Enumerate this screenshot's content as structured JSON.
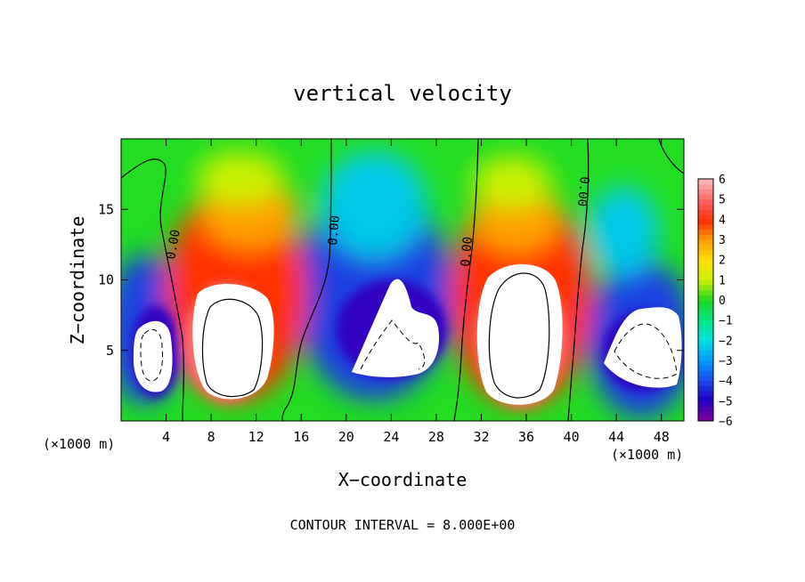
{
  "chart_data": {
    "type": "heatmap",
    "title": "vertical velocity",
    "xlabel": "X−coordinate",
    "ylabel": "Z−coordinate",
    "x_unit_left": "(×1000 m)",
    "x_unit_right": "(×1000 m)",
    "footer": "CONTOUR INTERVAL = 8.000E+00",
    "xlim": [
      0,
      50
    ],
    "ylim": [
      0,
      20
    ],
    "xticks": [
      4,
      8,
      12,
      16,
      20,
      24,
      28,
      32,
      36,
      40,
      44,
      48
    ],
    "yticks": [
      5,
      10,
      15
    ],
    "colorbar": {
      "range": [
        -6,
        6
      ],
      "ticks": [
        "6",
        "5",
        "4",
        "3",
        "2",
        "1",
        "0",
        "−1",
        "−2",
        "−3",
        "−4",
        "−5",
        "−6"
      ],
      "ramp": [
        "#7a00a0",
        "#2000c8",
        "#1850f0",
        "#00a0ff",
        "#00e0e0",
        "#00e880",
        "#20d820",
        "#c8f000",
        "#ffe000",
        "#ffa000",
        "#ff3000",
        "#ff6060",
        "#ffb0b0"
      ]
    },
    "contour_labels": [
      "0.00",
      "0.00",
      "0.00",
      "0.00"
    ],
    "updrafts_white": [
      {
        "center": [
          9.5,
          6
        ],
        "extent": [
          2.5,
          4
        ]
      },
      {
        "center": [
          35,
          5.5
        ],
        "extent": [
          3,
          5
        ]
      }
    ],
    "downdrafts_white": [
      {
        "center": [
          3,
          4.5
        ],
        "extent": [
          1.2,
          2
        ]
      },
      {
        "center": [
          24,
          5
        ],
        "extent": [
          3,
          3
        ]
      },
      {
        "center": [
          46,
          4
        ],
        "extent": [
          3,
          2.2
        ]
      }
    ],
    "grid": false
  }
}
